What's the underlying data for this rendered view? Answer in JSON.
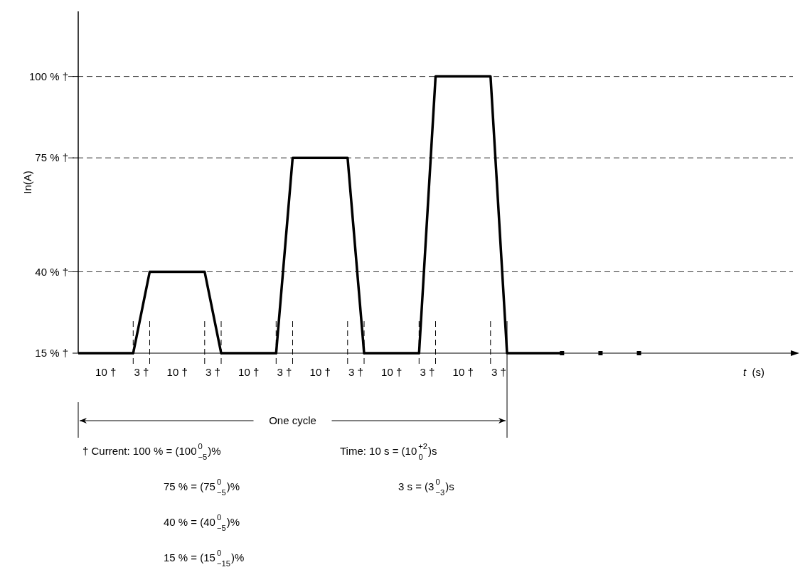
{
  "chart_data": {
    "type": "line",
    "xlabel": "t  (s)",
    "ylabel": "In(A)",
    "categories": [
      null,
      null,
      null,
      null,
      null,
      null,
      null,
      null,
      null,
      null,
      null,
      null,
      null,
      null,
      null,
      null,
      null,
      null,
      null,
      null,
      null,
      null,
      null,
      null,
      null,
      null,
      null,
      null,
      null,
      null,
      null,
      null,
      null,
      null,
      null,
      null,
      null,
      null,
      null,
      null,
      null,
      null,
      null,
      null,
      null,
      null,
      null,
      null,
      null,
      null,
      null,
      null,
      null,
      null,
      null,
      null,
      null,
      null,
      null,
      null,
      null,
      null,
      null,
      null,
      null,
      null,
      null,
      null,
      null,
      null,
      null,
      null,
      null,
      null,
      null,
      null,
      null,
      null,
      null,
      null,
      null,
      null,
      null,
      null,
      null,
      null,
      null,
      null,
      null,
      null,
      null,
      null,
      null,
      null,
      null,
      null,
      null,
      null,
      null,
      null,
      null,
      null,
      null,
      null,
      null,
      null,
      null,
      null,
      null,
      null,
      null,
      null,
      null,
      null,
      null,
      null,
      null,
      null,
      null,
      null,
      null,
      null,
      null,
      null,
      null,
      null,
      null,
      null,
      null,
      null,
      null
    ],
    "ylim": [
      15,
      120
    ],
    "yticks": [
      {
        "value": 15,
        "label": "15 % †"
      },
      {
        "value": 40,
        "label": "40 % †"
      },
      {
        "value": 75,
        "label": "75 % †"
      },
      {
        "value": 100,
        "label": "100 % †"
      }
    ],
    "grid": "y",
    "series": [
      {
        "color": "#000000",
        "values": [
          15,
          15,
          15,
          15,
          15,
          15,
          15,
          15,
          15,
          15,
          15,
          23.33,
          31.67,
          40,
          40,
          40,
          40,
          40,
          40,
          40,
          40,
          40,
          40,
          40,
          31.67,
          23.33,
          15,
          15,
          15,
          15,
          15,
          15,
          15,
          15,
          15,
          15,
          15,
          35,
          55,
          75,
          75,
          75,
          75,
          75,
          75,
          75,
          75,
          75,
          75,
          75,
          55,
          35,
          15,
          15,
          15,
          15,
          15,
          15,
          15,
          15,
          15,
          15,
          15,
          43.33,
          71.67,
          100,
          100,
          100,
          100,
          100,
          100,
          100,
          100,
          100,
          100,
          100,
          71.67,
          43.33,
          15,
          15,
          15,
          15,
          15,
          15,
          15,
          15,
          15,
          15,
          15,
          null,
          null,
          null,
          null,
          null,
          null,
          null,
          null,
          null,
          null,
          null,
          null,
          null,
          null,
          null,
          null,
          null,
          null,
          null,
          null,
          null,
          null,
          null,
          null,
          null,
          null,
          null,
          null,
          null,
          null,
          null,
          null,
          null,
          null,
          null,
          null,
          null,
          null,
          null,
          null,
          null,
          null
        ]
      },
      {
        "type": "scatter",
        "marker": "square",
        "color": "#000000",
        "values": [
          null,
          null,
          null,
          null,
          null,
          null,
          null,
          null,
          null,
          null,
          null,
          null,
          null,
          null,
          null,
          null,
          null,
          null,
          null,
          null,
          null,
          null,
          null,
          null,
          null,
          null,
          null,
          null,
          null,
          null,
          null,
          null,
          null,
          null,
          null,
          null,
          null,
          null,
          null,
          null,
          null,
          null,
          null,
          null,
          null,
          null,
          null,
          null,
          null,
          null,
          null,
          null,
          null,
          null,
          null,
          null,
          null,
          null,
          null,
          null,
          null,
          null,
          null,
          null,
          null,
          null,
          null,
          null,
          null,
          null,
          null,
          null,
          null,
          null,
          null,
          null,
          null,
          null,
          null,
          null,
          null,
          null,
          null,
          null,
          null,
          null,
          null,
          null,
          15,
          null,
          null,
          null,
          null,
          null,
          null,
          15,
          null,
          null,
          null,
          null,
          null,
          null,
          15,
          null,
          null,
          null,
          null,
          null,
          null,
          null,
          null,
          null,
          null,
          null,
          null,
          null,
          null,
          null,
          null,
          null,
          null,
          null,
          null,
          null,
          null,
          null,
          null,
          null,
          null,
          null,
          null
        ]
      }
    ],
    "annotations": [
      "10 †",
      "3 †",
      "10 †",
      "3 †",
      "10 †",
      "3 †",
      "10 †",
      "3 †",
      "10 †",
      "3 †",
      "10 †",
      "3 †",
      "One cycle",
      "† Current:  100 % = (100$^{0}$$_{−5}$)%",
      "75 % = (75$^{0}$$_{−5}$)%",
      "40 % = (40$^{0}$$_{−5}$)%",
      "15 % = (15$^{0}$$_{−15}$)%",
      "Time:    10 s = (10$^{+2}$$_{0}$)s",
      "3 s = (3$^{0}$$_{−3}$)s"
    ]
  }
}
